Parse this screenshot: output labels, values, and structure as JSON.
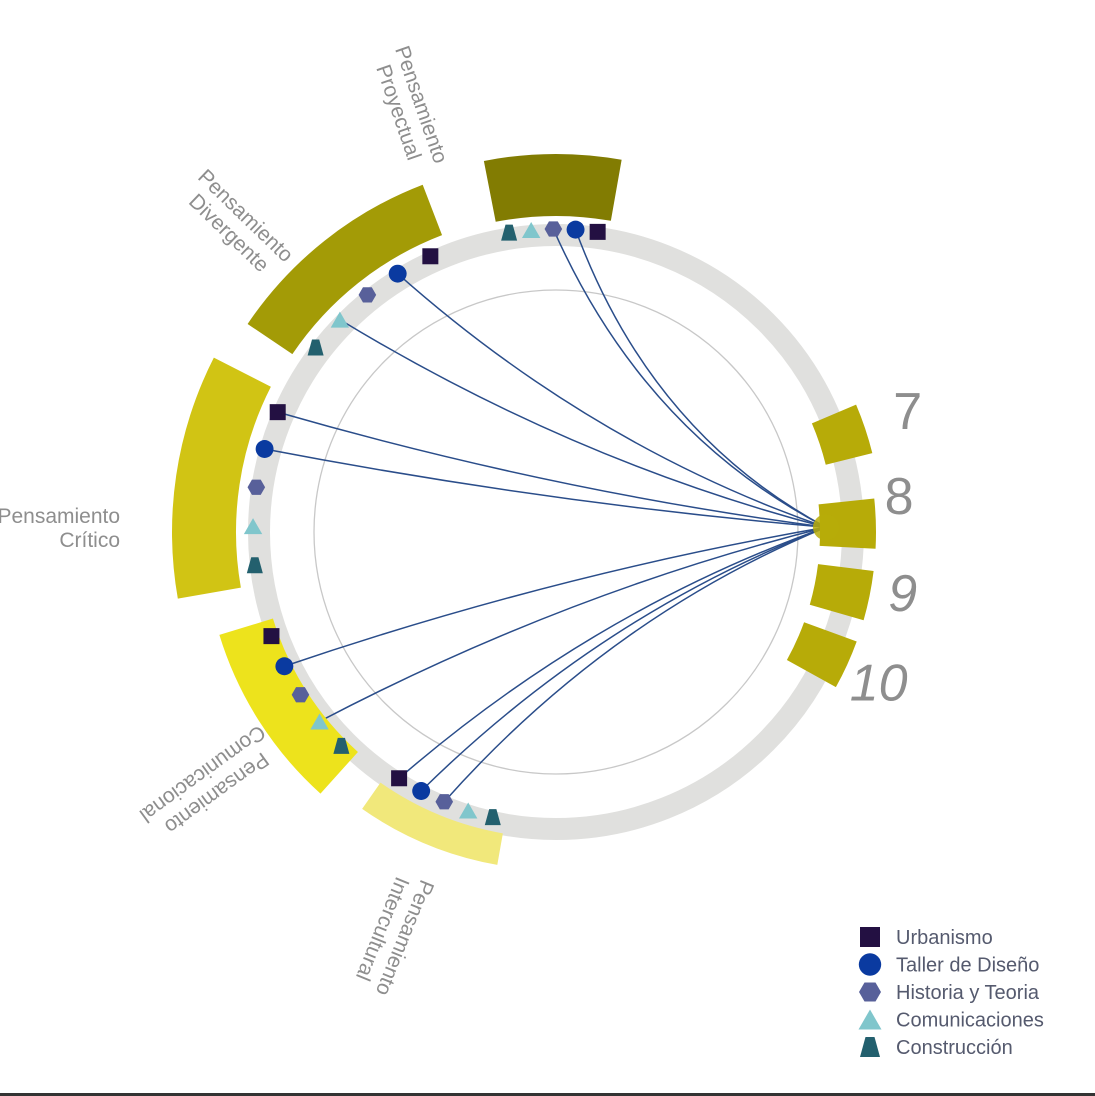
{
  "diagram": {
    "categories": [
      {
        "id": "proyectual",
        "lines": [
          "Pensamiento",
          "Proyectual"
        ],
        "color": "#827c02"
      },
      {
        "id": "divergente",
        "lines": [
          "Pensamiento",
          "Divergente"
        ],
        "color": "#a39b06"
      },
      {
        "id": "critico",
        "lines": [
          "Pensamiento",
          "Crítico"
        ],
        "color": "#d1c414"
      },
      {
        "id": "comunicacional",
        "lines": [
          "Pensamiento",
          "Comunicacional"
        ],
        "color": "#ede31c"
      },
      {
        "id": "intercultural",
        "lines": [
          "Pensamiento",
          "Intercultural"
        ],
        "color": "#f1e87b"
      }
    ],
    "semesters": [
      {
        "label": "7",
        "color": "#b7ab08"
      },
      {
        "label": "8",
        "color": "#b7ab08"
      },
      {
        "label": "9",
        "color": "#b7ab08"
      },
      {
        "label": "10",
        "color": "#b7ab08"
      }
    ],
    "focus_semester": "8",
    "legend": [
      {
        "label": "Urbanismo",
        "shape": "square",
        "color": "#231042"
      },
      {
        "label": "Taller de Diseño",
        "shape": "circle",
        "color": "#0a3aa0"
      },
      {
        "label": "Historia y Teoria",
        "shape": "hexagon",
        "color": "#58609a"
      },
      {
        "label": "Comunicaciones",
        "shape": "triangle",
        "color": "#80c6cc"
      },
      {
        "label": "Construcción",
        "shape": "trapezoid",
        "color": "#23606e"
      }
    ],
    "connections": [
      {
        "from": "8",
        "category": "proyectual",
        "subject": "Taller de Diseño"
      },
      {
        "from": "8",
        "category": "proyectual",
        "subject": "Historia y Teoria"
      },
      {
        "from": "8",
        "category": "divergente",
        "subject": "Taller de Diseño"
      },
      {
        "from": "8",
        "category": "divergente",
        "subject": "Comunicaciones"
      },
      {
        "from": "8",
        "category": "critico",
        "subject": "Urbanismo"
      },
      {
        "from": "8",
        "category": "critico",
        "subject": "Taller de Diseño"
      },
      {
        "from": "8",
        "category": "comunicacional",
        "subject": "Taller de Diseño"
      },
      {
        "from": "8",
        "category": "comunicacional",
        "subject": "Comunicaciones"
      },
      {
        "from": "8",
        "category": "intercultural",
        "subject": "Urbanismo"
      },
      {
        "from": "8",
        "category": "intercultural",
        "subject": "Taller de Diseño"
      },
      {
        "from": "8",
        "category": "intercultural",
        "subject": "Historia y Teoria"
      }
    ],
    "colors": {
      "ring": "#e0e0de",
      "ring_edge": "#c8c8c8",
      "inner_circle": "#c8c8c8",
      "connection": "#2a4d8a",
      "focus_dot": "#b7ab08",
      "label": "#8e8e8e"
    }
  }
}
